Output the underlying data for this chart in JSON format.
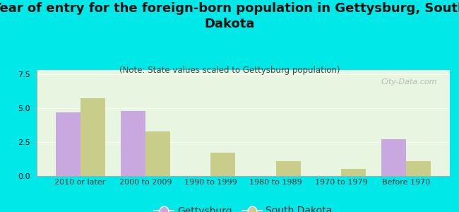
{
  "title": "Year of entry for the foreign-born population in Gettysburg, South\nDakota",
  "subtitle": "(Note: State values scaled to Gettysburg population)",
  "categories": [
    "2010 or later",
    "2000 to 2009",
    "1990 to 1999",
    "1980 to 1989",
    "1970 to 1979",
    "Before 1970"
  ],
  "gettysburg_values": [
    4.7,
    4.8,
    0,
    0,
    0,
    2.7
  ],
  "south_dakota_values": [
    5.7,
    3.3,
    1.7,
    1.1,
    0.5,
    1.1
  ],
  "gettysburg_color": "#c9a8e0",
  "south_dakota_color": "#c8ce8a",
  "background_color": "#00e8e8",
  "plot_bg_top": "#e8f5e0",
  "plot_bg_bottom": "#f5fff5",
  "ylim": [
    0,
    7.8
  ],
  "yticks": [
    0,
    2.5,
    5,
    7.5
  ],
  "bar_width": 0.38,
  "watermark": "City-Data.com",
  "title_fontsize": 13,
  "subtitle_fontsize": 8.5,
  "legend_fontsize": 10,
  "tick_fontsize": 8
}
